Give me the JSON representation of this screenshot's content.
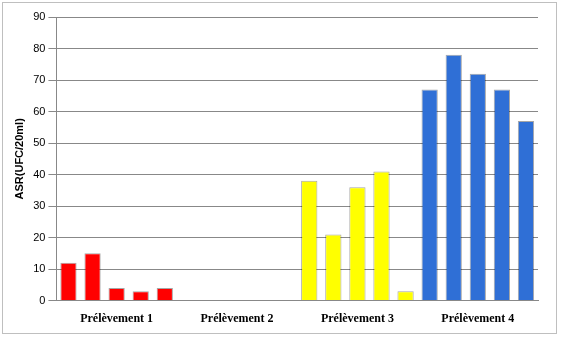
{
  "chart_data": {
    "type": "bar",
    "y_label": "ASR(UFC/20ml)",
    "categories": [
      null,
      null,
      "Prélèvement 1",
      null,
      null,
      null,
      null,
      "Prélèvement 2",
      null,
      null,
      null,
      null,
      "Prélèvement 3",
      null,
      null,
      null,
      null,
      "Prélèvement 4",
      null,
      null
    ],
    "values": [
      12,
      15,
      4,
      3,
      4,
      0,
      0,
      0,
      0,
      0,
      38,
      21,
      36,
      41,
      3,
      67,
      78,
      72,
      67,
      57
    ],
    "colors": [
      "#ff0000",
      "#ff0000",
      "#ff0000",
      "#ff0000",
      "#ff0000",
      "#ff0000",
      "#ff0000",
      "#ff0000",
      "#ff0000",
      "#ff0000",
      "#ffff00",
      "#ffff00",
      "#ffff00",
      "#ffff00",
      "#ffff00",
      "#2f6fd6",
      "#2f6fd6",
      "#2f6fd6",
      "#2f6fd6",
      "#2f6fd6"
    ],
    "ylim": [
      0,
      90
    ],
    "yticks": [
      0,
      10,
      20,
      30,
      40,
      50,
      60,
      70,
      80,
      90
    ],
    "grid": true
  }
}
